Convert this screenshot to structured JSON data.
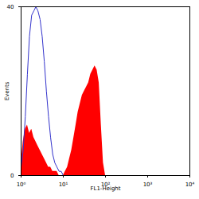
{
  "chart_data": {
    "type": "histogram",
    "x_label": "FL1-Height",
    "y_label": "Events",
    "log": "x",
    "xlim": [
      1,
      10000
    ],
    "xticks": [
      {
        "value": 1,
        "label": "10⁰"
      },
      {
        "value": 10,
        "label": "10¹"
      },
      {
        "value": 100,
        "label": "10²"
      },
      {
        "value": 1000,
        "label": "10³"
      },
      {
        "value": 10000,
        "label": "10⁴"
      }
    ],
    "ylim": [
      0,
      40
    ],
    "yticks": [
      0,
      40
    ],
    "x": [
      1,
      1.12,
      1.26,
      1.41,
      1.58,
      1.78,
      2,
      2.24,
      2.51,
      2.82,
      3.16,
      3.55,
      3.98,
      4.47,
      5.01,
      5.62,
      6.31,
      7.08,
      7.94,
      8.91,
      10,
      11.2,
      12.6,
      14.1,
      15.8,
      17.8,
      20,
      22.4,
      25.1,
      28.2,
      31.6,
      35.5,
      39.8,
      44.7,
      50.1,
      56.2,
      63.1,
      70.8,
      79.4,
      89.1,
      100,
      112,
      126
    ],
    "series": [
      {
        "type": "area",
        "color": "#ff0000",
        "values": [
          3,
          8,
          11,
          12,
          10,
          11,
          9,
          8,
          7,
          6,
          5,
          4,
          3,
          2,
          2,
          1,
          1,
          1,
          0,
          0,
          0,
          1,
          2,
          4,
          6,
          9,
          12,
          15,
          17,
          19,
          20,
          21,
          22,
          24,
          25,
          26,
          25,
          22,
          12,
          3,
          0,
          0,
          0
        ]
      },
      {
        "type": "line",
        "color": "#3333cc",
        "values": [
          2,
          6,
          14,
          24,
          33,
          38,
          39,
          40,
          39,
          37,
          33,
          27,
          20,
          14,
          9,
          5,
          3,
          2,
          1,
          1,
          0,
          0,
          0,
          0,
          0,
          0,
          0,
          0,
          0,
          0,
          0,
          0,
          0,
          0,
          0,
          0,
          0,
          0,
          0,
          0,
          0,
          0,
          0
        ]
      }
    ]
  }
}
